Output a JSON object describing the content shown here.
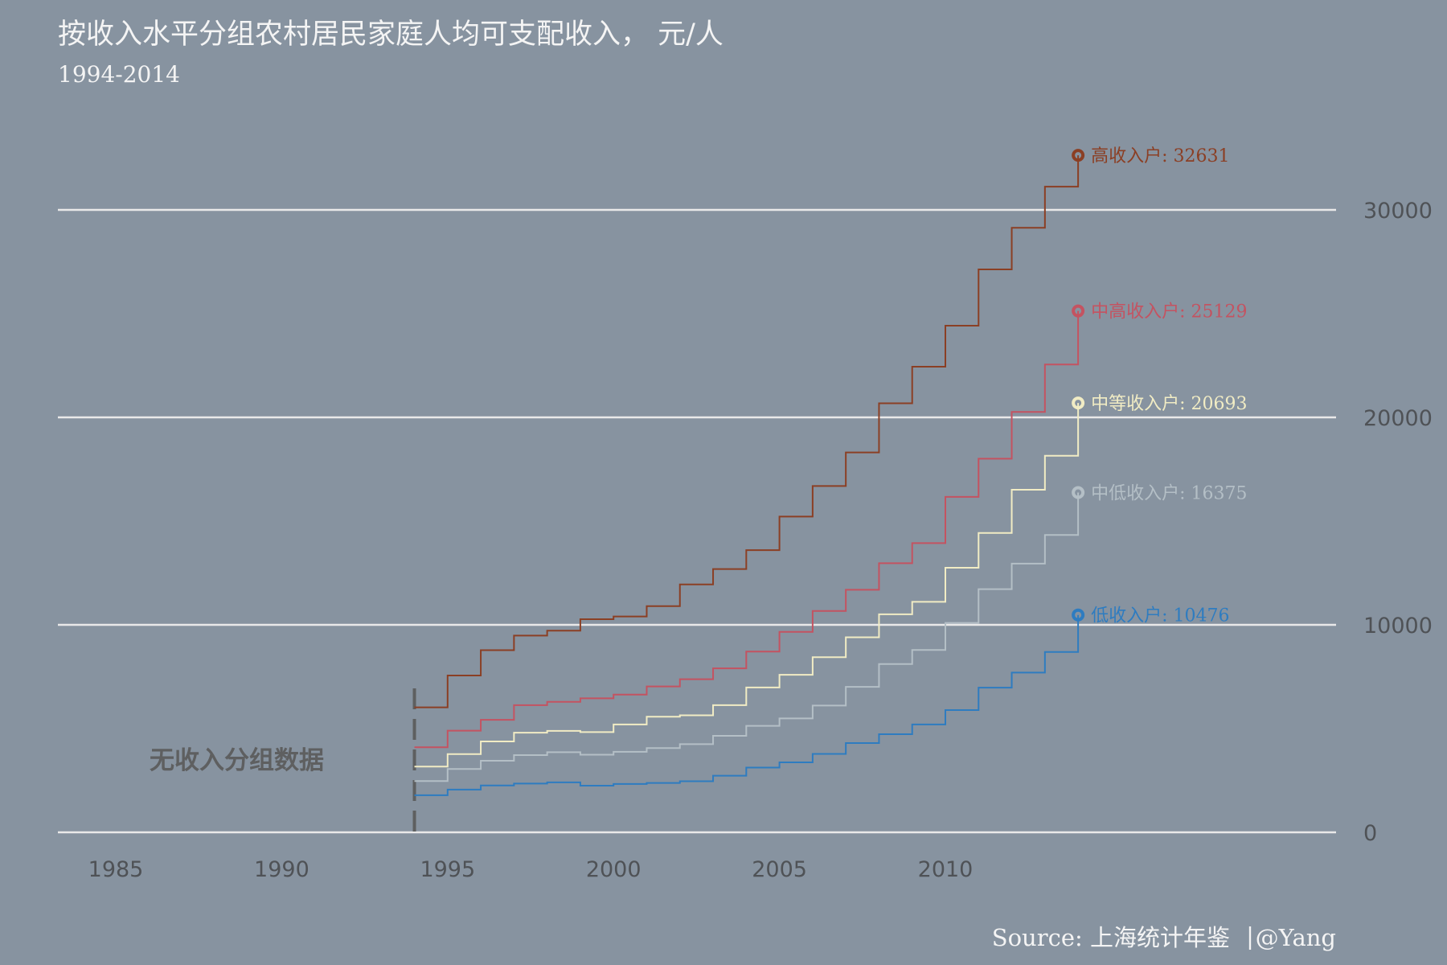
{
  "title": "按收入水平分组农村居民家庭人均可支配收入， 元/人",
  "subtitle": "1994-2014",
  "annotation": "无收入分组数据",
  "source": {
    "label": "Source: 上海统计年鉴",
    "separator": "|",
    "author": "@Yang"
  },
  "chart_data": {
    "type": "line",
    "step": true,
    "x": [
      1994,
      1995,
      1996,
      1997,
      1998,
      1999,
      2000,
      2001,
      2002,
      2003,
      2004,
      2005,
      2006,
      2007,
      2008,
      2009,
      2010,
      2011,
      2012,
      2013,
      2014
    ],
    "xlim": [
      1983.3,
      2021.8
    ],
    "ylim": [
      0,
      34000
    ],
    "x_ticks": [
      1985,
      1990,
      1995,
      2000,
      2005,
      2010
    ],
    "y_ticks": [
      0,
      10000,
      20000,
      30000
    ],
    "grid": "horizontal",
    "no_data_marker_x": 1994,
    "series": [
      {
        "name": "高收入户",
        "end_label": "高收入户: 32631",
        "end_value": 32631,
        "color": "#8b3f24",
        "values": [
          6020,
          7560,
          8780,
          9480,
          9720,
          10270,
          10400,
          10900,
          11950,
          12690,
          13600,
          15220,
          16690,
          18310,
          20680,
          22440,
          24420,
          27130,
          29140,
          31120,
          32631
        ]
      },
      {
        "name": "中高收入户",
        "end_label": "中高收入户: 25129",
        "end_value": 25129,
        "color": "#c45361",
        "values": [
          4100,
          4900,
          5420,
          6130,
          6290,
          6460,
          6640,
          7030,
          7380,
          7900,
          8710,
          9660,
          10670,
          11690,
          12970,
          13940,
          16170,
          18010,
          20260,
          22550,
          25129
        ]
      },
      {
        "name": "中等收入户",
        "end_label": "中等收入户: 20693",
        "end_value": 20693,
        "color": "#f1ecc4",
        "values": [
          3170,
          3770,
          4380,
          4800,
          4890,
          4830,
          5200,
          5570,
          5640,
          6130,
          6980,
          7590,
          8440,
          9400,
          10510,
          11110,
          12750,
          14430,
          16510,
          18150,
          20693
        ]
      },
      {
        "name": "中低收入户",
        "end_label": "中低收入户: 16375",
        "end_value": 16375,
        "color": "#b4bfc6",
        "values": [
          2470,
          3050,
          3450,
          3720,
          3860,
          3740,
          3880,
          4060,
          4250,
          4650,
          5130,
          5490,
          6110,
          7010,
          8110,
          8790,
          10090,
          11720,
          12950,
          14330,
          16375
        ]
      },
      {
        "name": "低收入户",
        "end_label": "低收入户: 10476",
        "end_value": 10476,
        "color": "#2e7cc0",
        "values": [
          1790,
          2060,
          2260,
          2350,
          2410,
          2250,
          2330,
          2380,
          2460,
          2730,
          3120,
          3370,
          3780,
          4300,
          4730,
          5200,
          5890,
          6970,
          7700,
          8690,
          10476
        ]
      }
    ]
  }
}
